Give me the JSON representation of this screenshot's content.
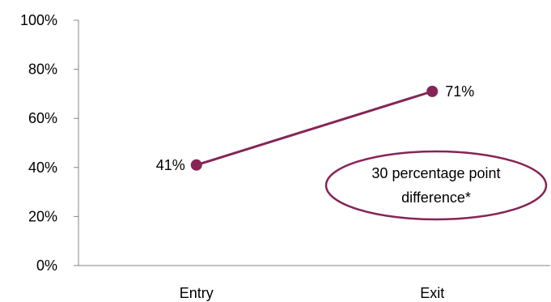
{
  "chart_data": {
    "type": "line",
    "title": "",
    "xlabel": "",
    "ylabel": "",
    "categories": [
      "Entry",
      "Exit"
    ],
    "series": [
      {
        "values": [
          41,
          71
        ],
        "data_labels": [
          "41%",
          "71%"
        ]
      }
    ],
    "ylim": [
      0,
      100
    ],
    "yticks": [
      0,
      20,
      40,
      60,
      80,
      100
    ],
    "ytick_labels": [
      "0%",
      "20%",
      "40%",
      "60%",
      "80%",
      "100%"
    ],
    "grid": false,
    "legend": "none",
    "line_color": "#862456",
    "annotation": {
      "lines": [
        "30 percentage point",
        "difference*"
      ],
      "shape": "ellipse",
      "color": "#862456"
    }
  }
}
